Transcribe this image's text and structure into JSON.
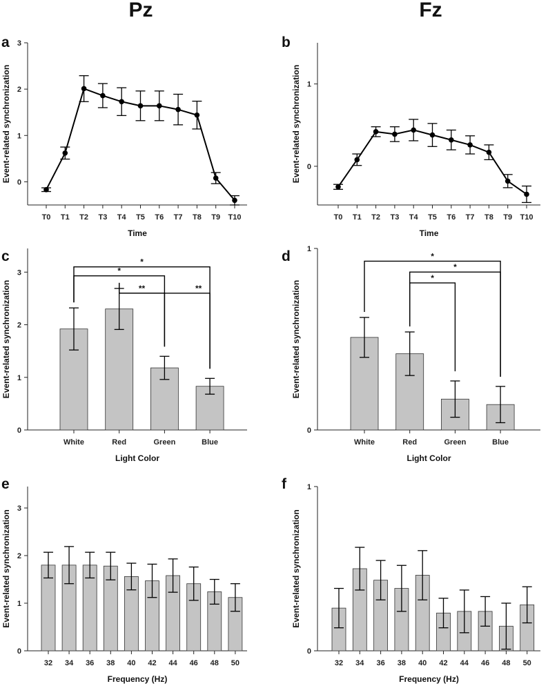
{
  "figure": {
    "column_titles": [
      "Pz",
      "Fz"
    ]
  },
  "chart_data": [
    {
      "id": "a",
      "letter": "a",
      "type": "line",
      "title": "",
      "xlabel": "Time",
      "ylabel": "Event-related synchronization",
      "categories": [
        "T0",
        "T1",
        "T2",
        "T3",
        "T4",
        "T5",
        "T6",
        "T7",
        "T8",
        "T9",
        "T10"
      ],
      "values": [
        -0.17,
        0.62,
        2.01,
        1.86,
        1.73,
        1.64,
        1.64,
        1.56,
        1.44,
        0.08,
        -0.4
      ],
      "errors": [
        0.04,
        0.13,
        0.28,
        0.26,
        0.3,
        0.32,
        0.32,
        0.33,
        0.3,
        0.12,
        0.1
      ],
      "ylim": [
        -0.5,
        3
      ],
      "yticks": [
        0,
        1,
        2,
        3
      ],
      "ytick_labels": [
        "0",
        "1",
        "2",
        "3"
      ]
    },
    {
      "id": "b",
      "letter": "b",
      "type": "line",
      "title": "",
      "xlabel": "Time",
      "ylabel": "Event-related synchronization",
      "categories": [
        "T0",
        "T1",
        "T2",
        "T3",
        "T4",
        "T5",
        "T6",
        "T7",
        "T8",
        "T9",
        "T10"
      ],
      "values": [
        -0.25,
        0.08,
        0.42,
        0.39,
        0.44,
        0.38,
        0.32,
        0.26,
        0.17,
        -0.18,
        -0.34
      ],
      "errors": [
        0.03,
        0.07,
        0.06,
        0.09,
        0.13,
        0.14,
        0.12,
        0.11,
        0.09,
        0.08,
        0.1
      ],
      "ylim": [
        -0.47,
        1.5
      ],
      "yticks": [
        0,
        1
      ],
      "ytick_labels": [
        "0",
        "1"
      ]
    },
    {
      "id": "c",
      "letter": "c",
      "type": "bar",
      "title": "",
      "xlabel": "Light Color",
      "ylabel": "Event-related synchronization",
      "categories": [
        "White",
        "Red",
        "Green",
        "Blue"
      ],
      "values": [
        1.92,
        2.3,
        1.18,
        0.83
      ],
      "errors": [
        0.4,
        0.39,
        0.22,
        0.15
      ],
      "ylim": [
        0,
        3.45
      ],
      "yticks": [
        0,
        1,
        2,
        3
      ],
      "ytick_labels": [
        "0",
        "1",
        "2",
        "3"
      ],
      "significance": [
        {
          "from": 0,
          "to": 3,
          "level": 3.1,
          "label": "*"
        },
        {
          "from": 0,
          "to": 2,
          "level": 2.93,
          "label": "*"
        },
        {
          "from": 1,
          "to": 2,
          "level": 2.6,
          "label": "**"
        },
        {
          "from": 1,
          "to": 3,
          "level": 2.6,
          "label": "**",
          "fork": 2.75
        }
      ]
    },
    {
      "id": "d",
      "letter": "d",
      "type": "bar",
      "title": "",
      "xlabel": "Light Color",
      "ylabel": "Event-related synchronization",
      "categories": [
        "White",
        "Red",
        "Green",
        "Blue"
      ],
      "values": [
        0.51,
        0.42,
        0.17,
        0.14
      ],
      "errors": [
        0.11,
        0.12,
        0.1,
        0.1
      ],
      "ylim": [
        0,
        1
      ],
      "yticks": [
        0,
        1
      ],
      "ytick_labels": [
        "0",
        "1"
      ],
      "significance": [
        {
          "from": 0,
          "to": 3,
          "level": 0.93,
          "label": "*"
        },
        {
          "from": 1,
          "to": 3,
          "level": 0.87,
          "label": "*"
        },
        {
          "from": 1,
          "to": 2,
          "level": 0.81,
          "label": "*"
        }
      ]
    },
    {
      "id": "e",
      "letter": "e",
      "type": "bar",
      "title": "",
      "xlabel": "Frequency (Hz)",
      "ylabel": "Event-related synchronization",
      "categories": [
        "32",
        "34",
        "36",
        "38",
        "40",
        "42",
        "44",
        "46",
        "48",
        "50"
      ],
      "values": [
        1.8,
        1.8,
        1.8,
        1.78,
        1.56,
        1.47,
        1.58,
        1.41,
        1.24,
        1.12
      ],
      "errors": [
        0.27,
        0.39,
        0.27,
        0.29,
        0.28,
        0.35,
        0.35,
        0.35,
        0.26,
        0.29
      ],
      "ylim": [
        0,
        3.45
      ],
      "yticks": [
        0,
        1,
        2,
        3
      ],
      "ytick_labels": [
        "0",
        "1",
        "2",
        "3"
      ]
    },
    {
      "id": "f",
      "letter": "f",
      "type": "bar",
      "title": "",
      "xlabel": "Frequency (Hz)",
      "ylabel": "Event-related synchronization",
      "categories": [
        "32",
        "34",
        "36",
        "38",
        "40",
        "42",
        "44",
        "46",
        "48",
        "50"
      ],
      "values": [
        0.26,
        0.5,
        0.43,
        0.38,
        0.46,
        0.23,
        0.24,
        0.24,
        0.15,
        0.28
      ],
      "errors": [
        0.12,
        0.13,
        0.12,
        0.14,
        0.15,
        0.09,
        0.13,
        0.09,
        0.14,
        0.11
      ],
      "ylim": [
        0,
        1
      ],
      "yticks": [
        0,
        1
      ],
      "ytick_labels": [
        "0",
        "1"
      ]
    }
  ]
}
